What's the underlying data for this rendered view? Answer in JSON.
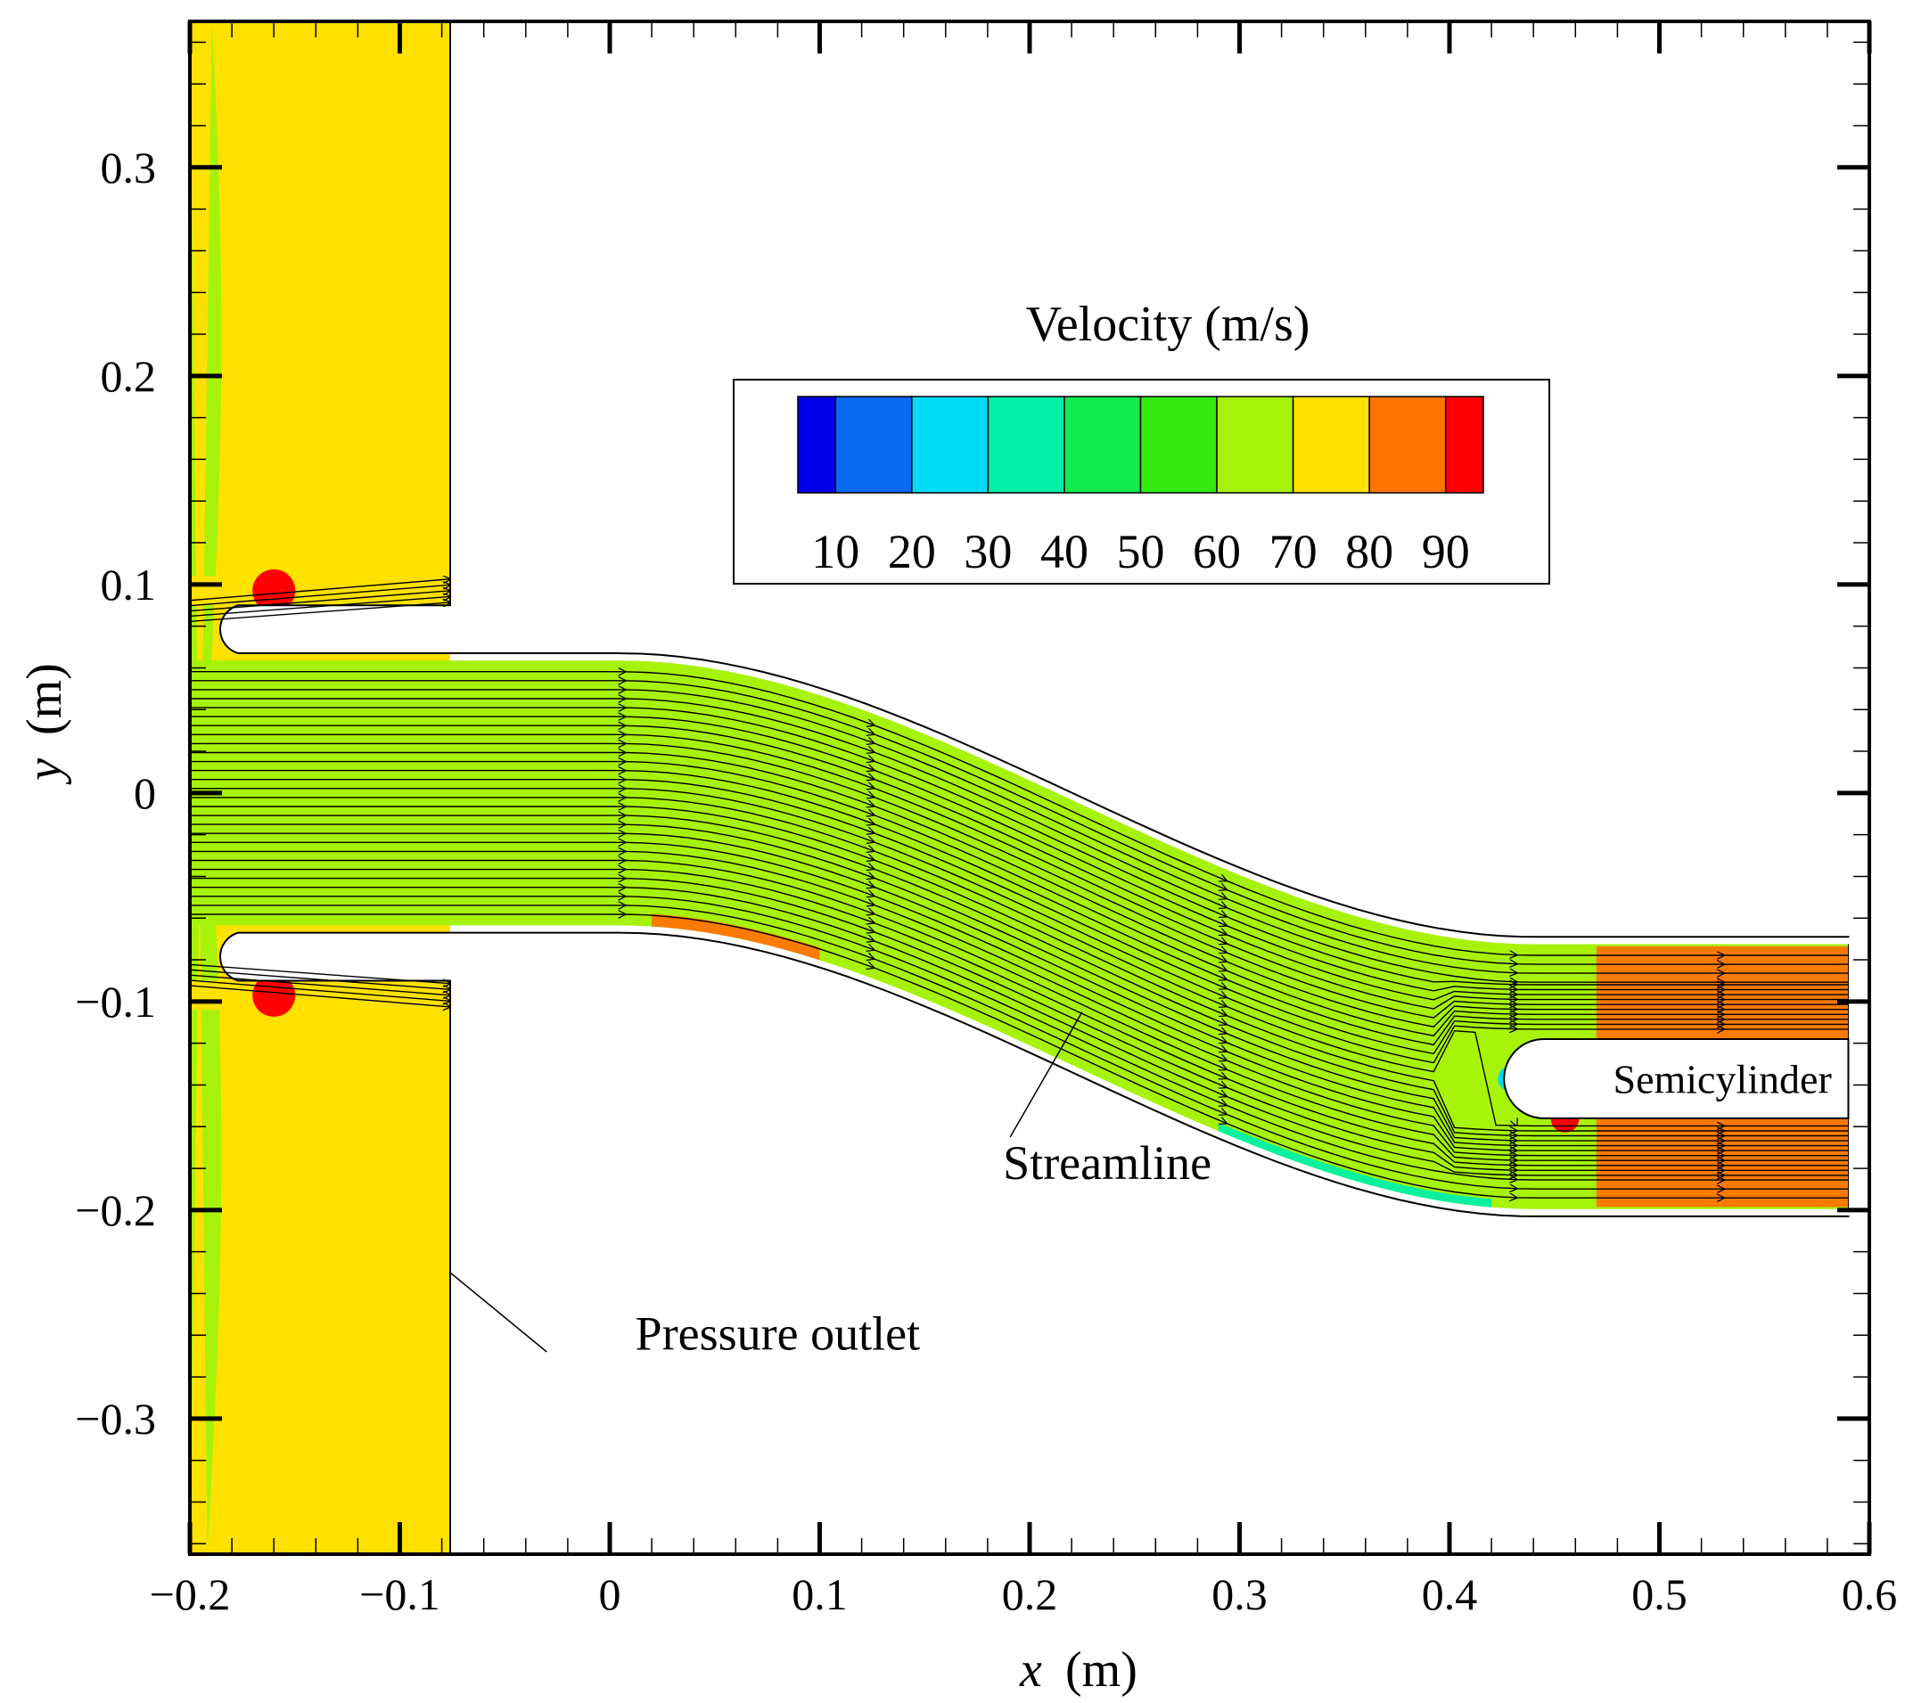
{
  "chart_data": {
    "type": "heatmap",
    "subtype": "cfd-velocity-contour-with-streamlines",
    "title": "",
    "xlabel": {
      "symbol": "x",
      "unit": "(m)"
    },
    "ylabel": {
      "symbol": "y",
      "unit": "(m)"
    },
    "xlim": [
      -0.2,
      0.6
    ],
    "ylim": [
      -0.365,
      0.37
    ],
    "x_ticks": [
      -0.2,
      -0.1,
      0,
      0.1,
      0.2,
      0.3,
      0.4,
      0.5,
      0.6
    ],
    "x_tick_labels": [
      "−0.2",
      "−0.1",
      "0",
      "0.1",
      "0.2",
      "0.3",
      "0.4",
      "0.5",
      "0.6"
    ],
    "y_ticks": [
      -0.3,
      -0.2,
      -0.1,
      0,
      0.1,
      0.2,
      0.3
    ],
    "y_tick_labels": [
      "−0.3",
      "−0.2",
      "−0.1",
      "0",
      "0.1",
      "0.2",
      "0.3"
    ],
    "minor_tick_step": 0.02,
    "legend": {
      "title": "Velocity (m/s)",
      "placement": "top-right",
      "levels": [
        10,
        20,
        30,
        40,
        50,
        60,
        70,
        80,
        90
      ],
      "level_labels": [
        "10",
        "20",
        "30",
        "40",
        "50",
        "60",
        "70",
        "80",
        "90"
      ],
      "colors": [
        "#0000e6",
        "#0a6af2",
        "#00dcf5",
        "#00f0a8",
        "#12ea4e",
        "#34ea12",
        "#a6f20a",
        "#ffe100",
        "#ff7300",
        "#ff0000"
      ]
    },
    "geometry": {
      "outlet_strip": {
        "x": [
          -0.2,
          -0.076
        ],
        "y": [
          -0.365,
          0.37
        ],
        "color": "#ffe100",
        "edge_color": "#a6f20a"
      },
      "slots": [
        {
          "x": [
            -0.2,
            -0.076
          ],
          "y": [
            0.09,
            0.104
          ]
        },
        {
          "x": [
            -0.2,
            -0.076
          ],
          "y": [
            -0.104,
            -0.09
          ]
        }
      ],
      "lips": [
        {
          "x": -0.177,
          "y": 0.08,
          "r": 0.012
        },
        {
          "x": -0.177,
          "y": -0.08,
          "r": 0.012
        }
      ],
      "duct": {
        "inlet_center_y": 0,
        "outlet_center_y": -0.136,
        "half_height": 0.0635,
        "bend_start_x": 0.005,
        "bend_end_x": 0.44,
        "end_x": 0.59,
        "color": "#a6f20a"
      },
      "semicylinder": {
        "x": 0.445,
        "y": -0.137,
        "r": 0.019,
        "end_x": 0.59
      }
    },
    "velocity_zones": [
      {
        "level": 60,
        "region": "upper wall, x 0.04–0.25",
        "color": "#34ea12"
      },
      {
        "level": 60,
        "region": "lower middle, x 0.24–0.45",
        "color": "#34ea12"
      },
      {
        "level": 80,
        "region": "lower wall, x 0.02–0.10",
        "color": "#ffe100"
      },
      {
        "level": 80,
        "region": "outlet channels, x 0.46–0.59",
        "color": "#ffe100"
      },
      {
        "level": 90,
        "region": "slot lips, x −0.16",
        "color": "#ff7300"
      },
      {
        "level": 90,
        "region": "semicylinder lee side",
        "color": "#ff7300"
      },
      {
        "level": 20,
        "region": "semicylinder stagnation point",
        "color": "#0a6af2"
      },
      {
        "level": 30,
        "region": "lower duct wall, x 0.28–0.42",
        "color": "#00dcf5"
      }
    ],
    "streamlines": {
      "duct_count": 28,
      "slot_count_each": 5,
      "inlet_y_range": [
        -0.06,
        0.06
      ]
    },
    "annotations": [
      {
        "text": "Streamline",
        "anchor_x": 0.225,
        "anchor_y": -0.105
      },
      {
        "text": "Pressure outlet",
        "anchor_x": -0.076,
        "anchor_y": -0.23
      },
      {
        "text": "Semicylinder",
        "anchor_x": 0.445,
        "anchor_y": -0.137
      }
    ]
  }
}
